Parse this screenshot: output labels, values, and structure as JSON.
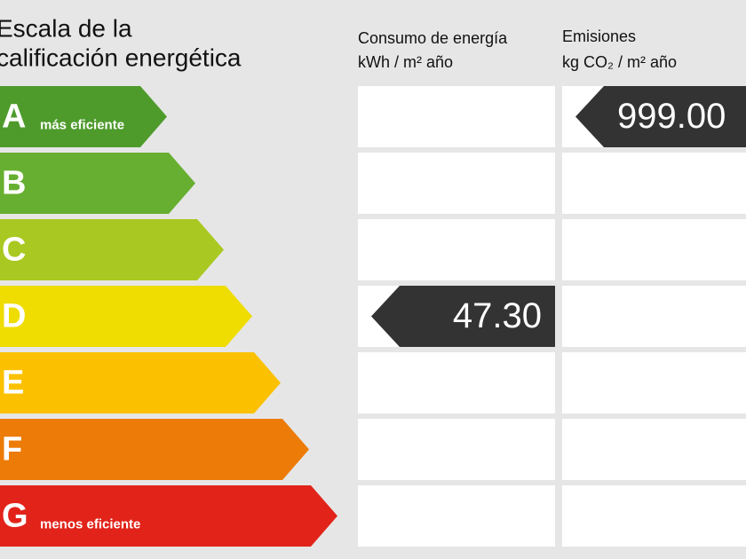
{
  "header": {
    "title": [
      "Escala de la",
      "calificación energética"
    ],
    "columns": [
      {
        "title": "Consumo de energía",
        "unit": "kWh / m² año"
      },
      {
        "title": "Emisiones",
        "unit": "kg CO₂ / m² año"
      }
    ]
  },
  "scale": [
    {
      "letter": "A",
      "label": "más eficiente",
      "color": "#4e9b2c"
    },
    {
      "letter": "B",
      "color": "#67af30"
    },
    {
      "letter": "C",
      "color": "#a9c821"
    },
    {
      "letter": "D",
      "color": "#efdc00"
    },
    {
      "letter": "E",
      "color": "#fbc100"
    },
    {
      "letter": "F",
      "color": "#ec7b08"
    },
    {
      "letter": "G",
      "label": "menos eficiente",
      "color": "#e2231a"
    }
  ],
  "ratings": [
    {
      "grade": "D",
      "value": "47.30"
    },
    {
      "grade": "A",
      "value": "999.00"
    }
  ]
}
